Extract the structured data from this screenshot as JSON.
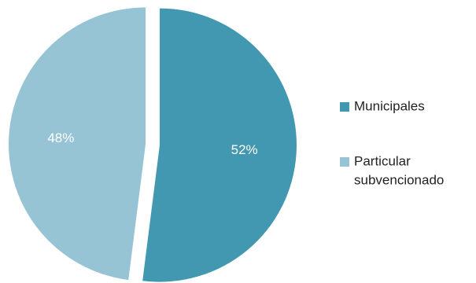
{
  "chart_data": {
    "type": "pie",
    "title": "",
    "legend_position": "right",
    "series": [
      {
        "name": "Municipales",
        "value": 52,
        "label": "52%",
        "color": "#4298B0",
        "legend_lines": [
          "Municipales"
        ]
      },
      {
        "name": "Particular subvencionado",
        "value": 48,
        "label": "48%",
        "color": "#96C4D4",
        "legend_lines": [
          "Particular",
          "subvencionado"
        ]
      }
    ]
  }
}
